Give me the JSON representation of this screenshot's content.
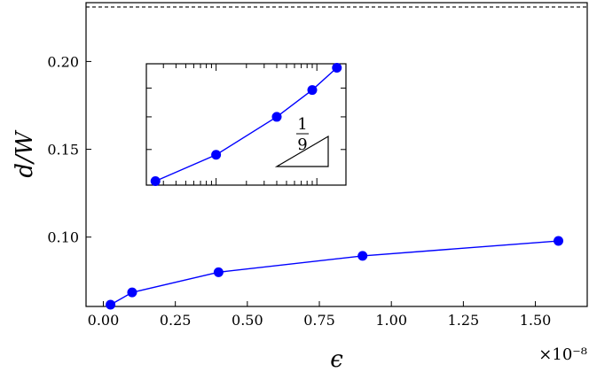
{
  "chart_data": [
    {
      "type": "line",
      "xlabel": "ϵ",
      "ylabel": "d/W",
      "x_scale_note": "×10⁻⁸",
      "x_ticks": [
        "0.00",
        "0.25",
        "0.50",
        "0.75",
        "1.00",
        "1.25",
        "1.50"
      ],
      "y_ticks": [
        "0.10",
        "0.15",
        "0.20"
      ],
      "xlim": [
        -0.06,
        1.68
      ],
      "ylim": [
        0.0605,
        0.2335
      ],
      "grid": false,
      "reference_line": {
        "y": 0.231,
        "style": "dashed",
        "color": "#000000"
      },
      "series": [
        {
          "color": "#0000ff",
          "x": [
            0.025,
            0.1,
            0.4,
            0.9,
            1.58
          ],
          "y": [
            0.0615,
            0.0685,
            0.08,
            0.0893,
            0.0978
          ]
        }
      ]
    },
    {
      "type": "line",
      "inset": true,
      "x_scale": "log",
      "y_scale": "log",
      "slope_label": {
        "numerator": "1",
        "denominator": "9"
      },
      "series": [
        {
          "color": "#0000ff",
          "x": [
            0.025,
            0.1,
            0.4,
            0.9,
            1.58
          ],
          "y": [
            0.0615,
            0.0685,
            0.08,
            0.0893,
            0.0978
          ]
        }
      ]
    }
  ]
}
